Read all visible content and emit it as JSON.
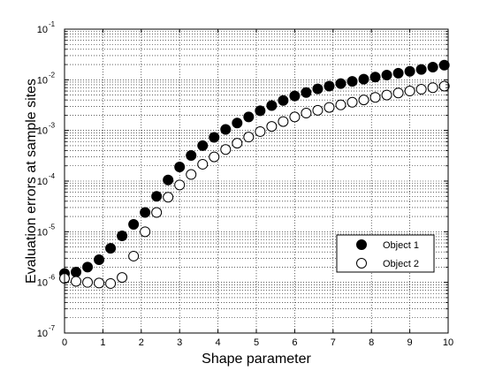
{
  "chart_data": {
    "type": "scatter",
    "xlabel": "Shape parameter",
    "ylabel": "Evaluation errors at sample sites",
    "xlim": [
      0,
      10
    ],
    "ylim": [
      1e-07,
      0.1
    ],
    "yscale": "log",
    "xticks": [
      "0",
      "1",
      "2",
      "3",
      "4",
      "5",
      "6",
      "7",
      "8",
      "9",
      "10"
    ],
    "yticks": [
      {
        "base": "10",
        "exp": "-7"
      },
      {
        "base": "10",
        "exp": "-6"
      },
      {
        "base": "10",
        "exp": "-5"
      },
      {
        "base": "10",
        "exp": "-4"
      },
      {
        "base": "10",
        "exp": "-3"
      },
      {
        "base": "10",
        "exp": "-2"
      },
      {
        "base": "10",
        "exp": "-1"
      }
    ],
    "grid": true,
    "legend_position": "lower-right",
    "series": [
      {
        "name": "Object 1",
        "marker": "filled-circle",
        "color": "#000000",
        "x": [
          0,
          0.3,
          0.6,
          0.9,
          1.2,
          1.5,
          1.8,
          2.1,
          2.4,
          2.7,
          3.0,
          3.3,
          3.6,
          3.9,
          4.2,
          4.5,
          4.8,
          5.1,
          5.4,
          5.7,
          6.0,
          6.3,
          6.6,
          6.9,
          7.2,
          7.5,
          7.8,
          8.1,
          8.4,
          8.7,
          9.0,
          9.3,
          9.6,
          9.9
        ],
        "y": [
          1.5e-06,
          1.6e-06,
          2e-06,
          2.8e-06,
          4.7e-06,
          8.3e-06,
          1.4e-05,
          2.4e-05,
          5e-05,
          0.000105,
          0.00019,
          0.00032,
          0.0005,
          0.00073,
          0.00105,
          0.0014,
          0.00185,
          0.00245,
          0.0031,
          0.0039,
          0.0048,
          0.0056,
          0.0066,
          0.0075,
          0.0084,
          0.0093,
          0.0103,
          0.0113,
          0.0124,
          0.0135,
          0.0147,
          0.016,
          0.0178,
          0.0195
        ]
      },
      {
        "name": "Object 2",
        "marker": "open-circle",
        "color": "#000000",
        "x": [
          0,
          0.3,
          0.6,
          0.9,
          1.2,
          1.5,
          1.8,
          2.1,
          2.4,
          2.7,
          3.0,
          3.3,
          3.6,
          3.9,
          4.2,
          4.5,
          4.8,
          5.1,
          5.4,
          5.7,
          6.0,
          6.3,
          6.6,
          6.9,
          7.2,
          7.5,
          7.8,
          8.1,
          8.4,
          8.7,
          9.0,
          9.3,
          9.6,
          9.9
        ],
        "y": [
          1.2e-06,
          1.05e-06,
          1e-06,
          9.7e-07,
          9.5e-07,
          1.25e-06,
          3.3e-06,
          1e-05,
          2.4e-05,
          4.8e-05,
          8.4e-05,
          0.000135,
          0.000215,
          0.0003,
          0.00042,
          0.00056,
          0.00074,
          0.00095,
          0.0012,
          0.0015,
          0.00185,
          0.0022,
          0.0025,
          0.00285,
          0.0032,
          0.0036,
          0.004,
          0.0045,
          0.005,
          0.0055,
          0.006,
          0.0065,
          0.007,
          0.0075
        ]
      }
    ]
  }
}
